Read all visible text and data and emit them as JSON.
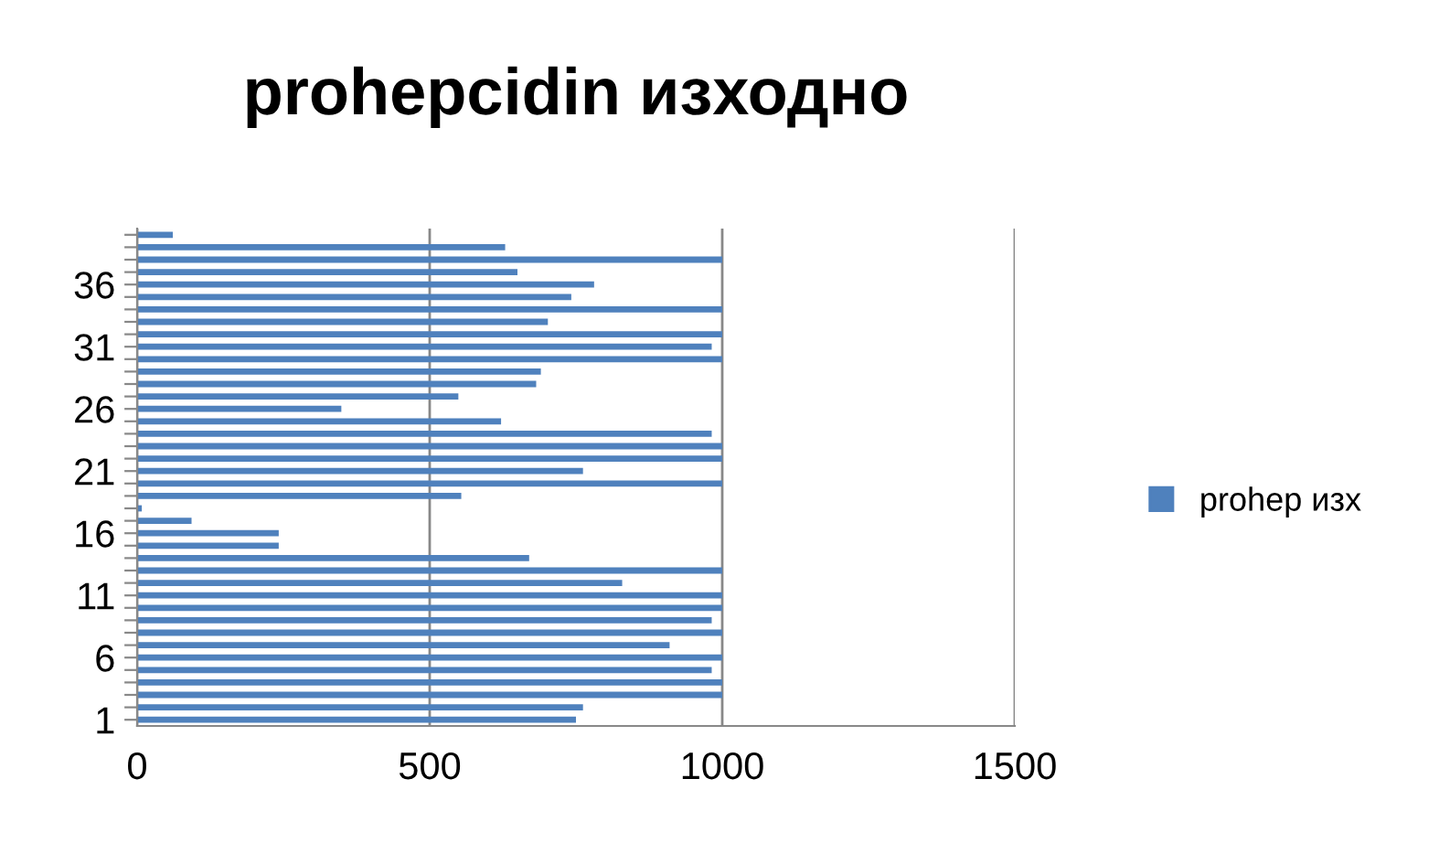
{
  "chart_data": {
    "type": "bar",
    "orientation": "horizontal",
    "title": "prohepcidin изходно",
    "categories": [
      null,
      null,
      null,
      null,
      "36",
      null,
      null,
      null,
      null,
      "31",
      null,
      null,
      null,
      null,
      "26",
      null,
      null,
      null,
      null,
      "21",
      null,
      null,
      null,
      null,
      "16",
      null,
      null,
      null,
      null,
      "11",
      null,
      null,
      null,
      null,
      "6",
      null,
      null,
      null,
      null,
      "1"
    ],
    "series": [
      {
        "name": "prohep изх",
        "color": "#4f81bd",
        "values": [
          61,
          629,
          1000,
          650,
          781,
          742,
          1000,
          702,
          1000,
          982,
          1000,
          690,
          682,
          549,
          349,
          622,
          982,
          1000,
          1000,
          762,
          1000,
          554,
          8,
          93,
          242,
          242,
          670,
          1000,
          829,
          1000,
          1000,
          982,
          1000,
          910,
          1000,
          982,
          1000,
          1000,
          762,
          750
        ]
      }
    ],
    "xlim": [
      0,
      1500
    ],
    "xticks": [
      0,
      500,
      1000,
      1500
    ],
    "grid": "x",
    "legend": "right"
  }
}
